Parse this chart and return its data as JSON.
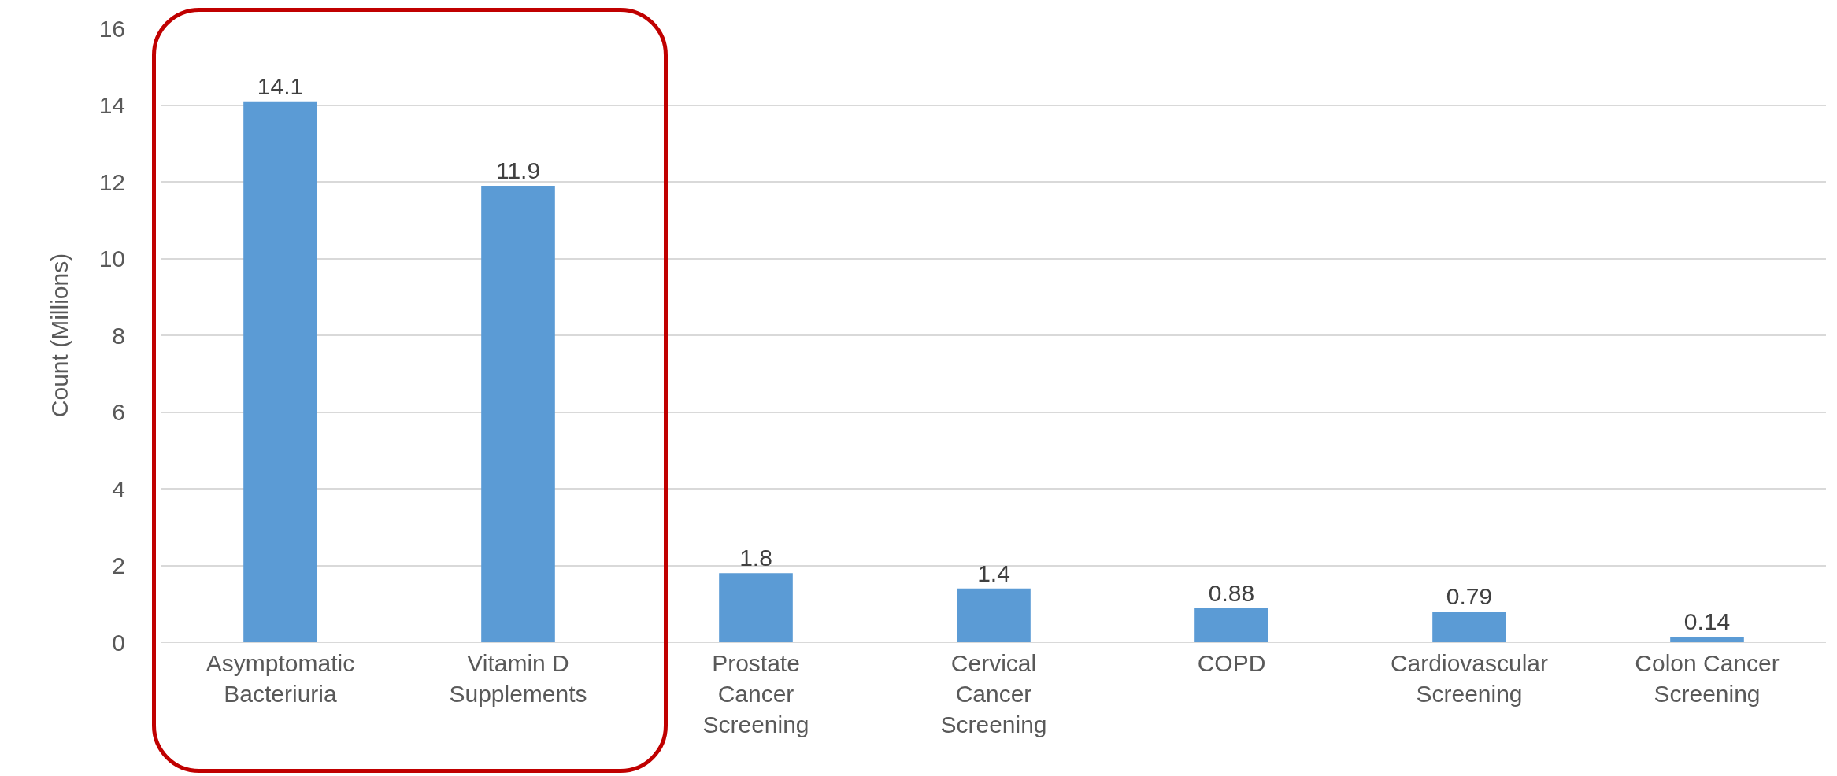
{
  "chart_data": {
    "type": "bar",
    "ylabel": "Count (Millions)",
    "categories": [
      "Asymptomatic Bacteriuria",
      "Vitamin D Supplements",
      "Prostate Cancer Screening",
      "Cervical Cancer Screening",
      "COPD",
      "Cardiovascular Screening",
      "Colon Cancer Screening"
    ],
    "values": [
      14.1,
      11.9,
      1.8,
      1.4,
      0.88,
      0.79,
      0.14
    ],
    "color": "#5b9bd5",
    "ylim": [
      0,
      16
    ],
    "yticks": [
      0,
      2,
      4,
      6,
      8,
      10,
      12,
      14,
      16
    ],
    "grid": "y",
    "data_labels": true
  }
}
